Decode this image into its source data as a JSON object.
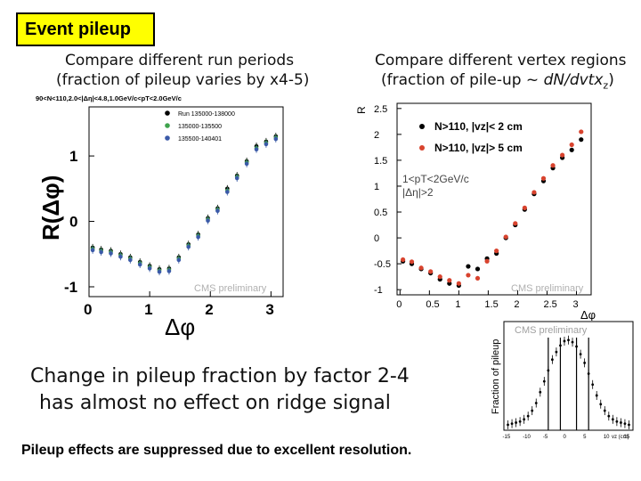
{
  "slide": {
    "title": "Event pileup",
    "left_heading_line1": "Compare different run periods",
    "left_heading_line2": "(fraction of pileup varies by x4-5)",
    "right_heading_line1": "Compare different vertex regions",
    "right_heading_line2": "(fraction of pile-up ~ ",
    "right_heading_line2_italic": "d",
    "right_heading_line2_rest": "N/dvtx",
    "right_heading_line2_sub": "z",
    "right_heading_line2_end": ")",
    "conclusion_line1": "Change in pileup fraction by factor 2-4",
    "conclusion_line2": "has almost no effect on ridge signal",
    "footer": "Pileup effects are suppressed due to excellent resolution."
  },
  "chart_data": [
    {
      "type": "scatter",
      "cut_label": "90<N<110,2.0<|Δη|<4.8,1.0GeV/c<pT<2.0GeV/c",
      "xlabel": "Δφ",
      "ylabel": "R(Δφ)",
      "xticks": [
        "0",
        "1",
        "2",
        "3"
      ],
      "yticks": [
        "-1",
        "0",
        "1"
      ],
      "xlim": [
        0,
        3.2
      ],
      "ylim": [
        -1.15,
        1.75
      ],
      "watermark": "CMS preliminary",
      "series": [
        {
          "name": "Run 135000-138000",
          "color": "#000000",
          "x": [
            0.06,
            0.2,
            0.36,
            0.52,
            0.68,
            0.84,
            1.0,
            1.16,
            1.32,
            1.48,
            1.64,
            1.8,
            1.96,
            2.12,
            2.28,
            2.44,
            2.6,
            2.76,
            2.92,
            3.08
          ],
          "y": [
            -0.4,
            -0.43,
            -0.45,
            -0.5,
            -0.55,
            -0.62,
            -0.68,
            -0.73,
            -0.72,
            -0.55,
            -0.35,
            -0.2,
            0.05,
            0.2,
            0.5,
            0.7,
            0.92,
            1.15,
            1.22,
            1.3
          ]
        },
        {
          "name": "135000-135500",
          "color": "#3fa34d",
          "x": [
            0.06,
            0.2,
            0.36,
            0.52,
            0.68,
            0.84,
            1.0,
            1.16,
            1.32,
            1.48,
            1.64,
            1.8,
            1.96,
            2.12,
            2.28,
            2.44,
            2.6,
            2.76,
            2.92,
            3.08
          ],
          "y": [
            -0.42,
            -0.45,
            -0.47,
            -0.52,
            -0.57,
            -0.64,
            -0.7,
            -0.75,
            -0.74,
            -0.57,
            -0.37,
            -0.22,
            0.03,
            0.18,
            0.47,
            0.68,
            0.9,
            1.12,
            1.2,
            1.28
          ]
        },
        {
          "name": "135500-140401",
          "color": "#3b5aa8",
          "x": [
            0.06,
            0.2,
            0.36,
            0.52,
            0.68,
            0.84,
            1.0,
            1.16,
            1.32,
            1.48,
            1.64,
            1.8,
            1.96,
            2.12,
            2.28,
            2.44,
            2.6,
            2.76,
            2.92,
            3.08
          ],
          "y": [
            -0.44,
            -0.47,
            -0.49,
            -0.54,
            -0.59,
            -0.66,
            -0.72,
            -0.77,
            -0.76,
            -0.59,
            -0.39,
            -0.24,
            0.01,
            0.16,
            0.45,
            0.66,
            0.88,
            1.1,
            1.18,
            1.26
          ]
        }
      ]
    },
    {
      "type": "scatter",
      "cut_label_line1": "1<pT<2GeV/c",
      "cut_label_line2": "|Δη|>2",
      "xlabel": "Δφ",
      "ylabel": "R",
      "xticks": [
        "0",
        "0.5",
        "1",
        "1.5",
        "2",
        "2.5",
        "3"
      ],
      "yticks": [
        "-1",
        "-0.5",
        "0",
        "0.5",
        "1",
        "1.5",
        "2",
        "2.5"
      ],
      "xlim": [
        -0.05,
        3.25
      ],
      "ylim": [
        -1.1,
        2.6
      ],
      "watermark": "CMS preliminary",
      "series": [
        {
          "name": "N>110, |vz|< 2 cm",
          "color": "#000000",
          "x": [
            0.05,
            0.2,
            0.36,
            0.52,
            0.68,
            0.84,
            1.0,
            1.16,
            1.32,
            1.48,
            1.64,
            1.8,
            1.96,
            2.12,
            2.28,
            2.44,
            2.6,
            2.76,
            2.92,
            3.08
          ],
          "y": [
            -0.45,
            -0.5,
            -0.6,
            -0.68,
            -0.8,
            -0.88,
            -0.92,
            -0.55,
            -0.6,
            -0.4,
            -0.3,
            0.0,
            0.25,
            0.55,
            0.85,
            1.1,
            1.35,
            1.55,
            1.7,
            1.9
          ]
        },
        {
          "name": "N>110, |vz|> 5 cm",
          "color": "#d8432e",
          "x": [
            0.05,
            0.2,
            0.36,
            0.52,
            0.68,
            0.84,
            1.0,
            1.16,
            1.32,
            1.48,
            1.64,
            1.8,
            1.96,
            2.12,
            2.28,
            2.44,
            2.6,
            2.76,
            2.92,
            3.08
          ],
          "y": [
            -0.42,
            -0.46,
            -0.58,
            -0.65,
            -0.75,
            -0.82,
            -0.88,
            -0.72,
            -0.78,
            -0.45,
            -0.25,
            0.02,
            0.28,
            0.58,
            0.88,
            1.15,
            1.4,
            1.6,
            1.8,
            2.05
          ]
        }
      ]
    },
    {
      "type": "histogram",
      "xlabel": "vz (cm)",
      "ylabel": "Fraction of pileup",
      "xticks": [
        "-15",
        "-10",
        "-5",
        "0",
        "5",
        "10",
        "15"
      ],
      "xlim": [
        -16,
        16
      ],
      "ylim": [
        0,
        1
      ],
      "watermark": "CMS preliminary",
      "cut_lines_x": [
        -2,
        2,
        -5,
        5
      ],
      "x": [
        -15,
        -14,
        -13,
        -12,
        -11,
        -10,
        -9,
        -8,
        -7,
        -6,
        -5,
        -4,
        -3,
        -2,
        -1,
        0,
        1,
        2,
        3,
        4,
        5,
        6,
        7,
        8,
        9,
        10,
        11,
        12,
        13,
        14,
        15
      ],
      "y": [
        0.05,
        0.06,
        0.07,
        0.08,
        0.1,
        0.13,
        0.18,
        0.25,
        0.35,
        0.45,
        0.55,
        0.65,
        0.72,
        0.78,
        0.82,
        0.83,
        0.81,
        0.77,
        0.7,
        0.62,
        0.52,
        0.42,
        0.32,
        0.24,
        0.18,
        0.13,
        0.1,
        0.08,
        0.07,
        0.06,
        0.05
      ]
    }
  ]
}
